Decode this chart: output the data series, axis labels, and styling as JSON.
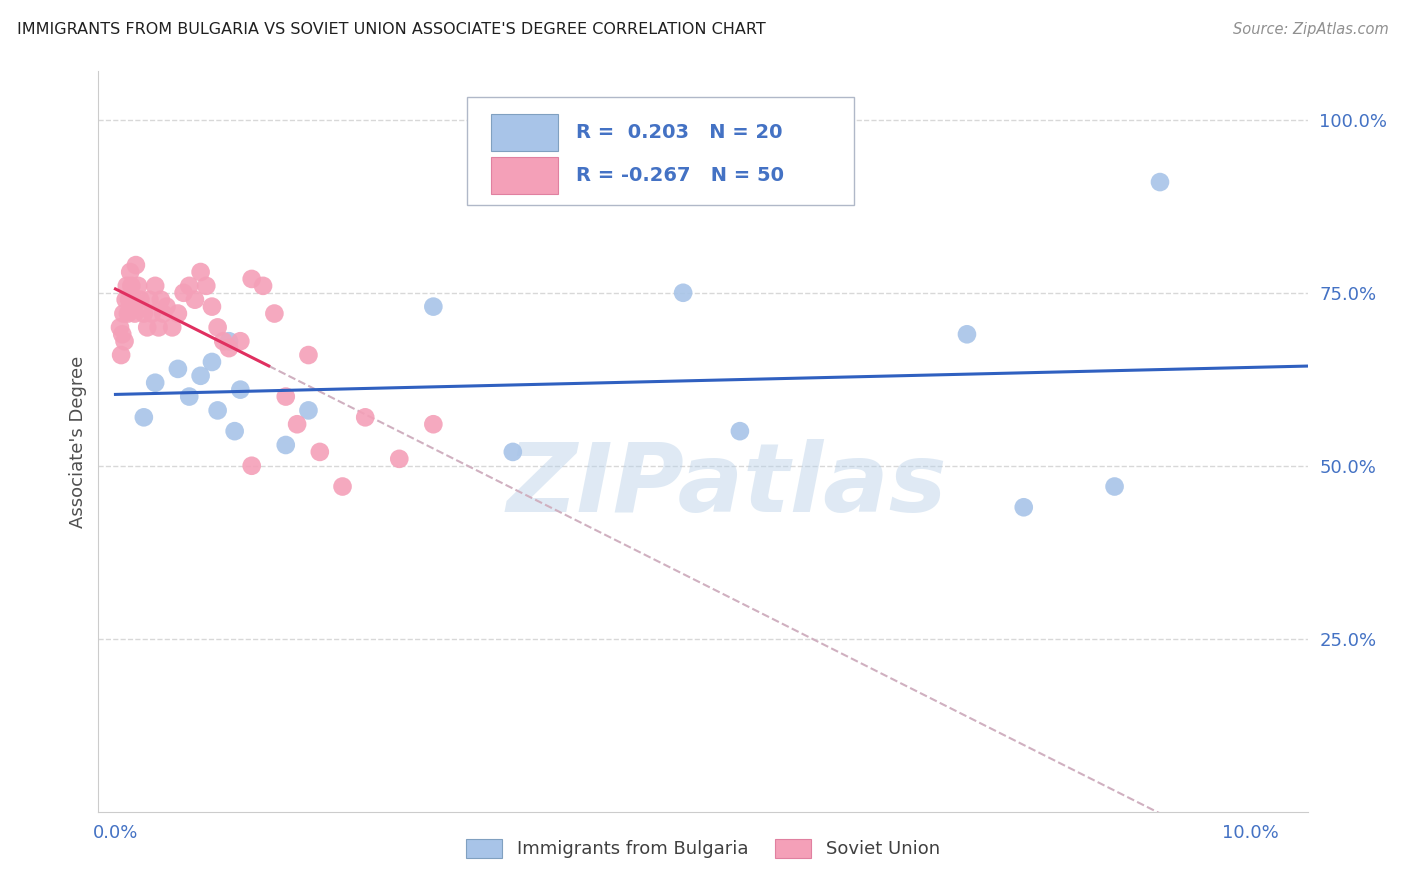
{
  "title": "IMMIGRANTS FROM BULGARIA VS SOVIET UNION ASSOCIATE'S DEGREE CORRELATION CHART",
  "source": "Source: ZipAtlas.com",
  "ylabel": "Associate's Degree",
  "watermark": "ZIPatlas",
  "bg_color": "#ffffff",
  "bulgaria_color": "#a8c4e8",
  "soviet_color": "#f4a0b8",
  "bulgaria_line_color": "#3060c0",
  "soviet_line_color": "#e03060",
  "soviet_line_dashed_color": "#d0b0c0",
  "axis_label_color": "#4472c4",
  "title_color": "#202020",
  "grid_color": "#d8d8d8",
  "ylim_bottom": 0.0,
  "ylim_top": 107.0,
  "xlim_left": -0.15,
  "xlim_right": 10.5,
  "bulgaria_x": [
    0.25,
    0.35,
    0.55,
    0.65,
    0.75,
    0.85,
    0.9,
    1.0,
    1.05,
    1.1,
    1.5,
    1.7,
    2.8,
    3.5,
    5.0,
    5.5,
    7.5,
    8.0,
    8.8,
    9.2
  ],
  "bulgaria_y": [
    57,
    62,
    64,
    60,
    63,
    65,
    58,
    68,
    55,
    61,
    53,
    58,
    73,
    52,
    75,
    55,
    69,
    44,
    47,
    91
  ],
  "soviet_x": [
    0.04,
    0.05,
    0.06,
    0.07,
    0.08,
    0.09,
    0.1,
    0.11,
    0.12,
    0.13,
    0.14,
    0.15,
    0.16,
    0.17,
    0.18,
    0.2,
    0.22,
    0.25,
    0.28,
    0.3,
    0.32,
    0.35,
    0.38,
    0.4,
    0.42,
    0.45,
    0.5,
    0.55,
    0.6,
    0.65,
    0.7,
    0.75,
    0.8,
    0.85,
    0.9,
    0.95,
    1.0,
    1.1,
    1.2,
    1.3,
    1.4,
    1.5,
    1.6,
    1.8,
    2.0,
    2.2,
    2.5,
    2.8,
    1.7,
    1.2
  ],
  "soviet_y": [
    70,
    66,
    69,
    72,
    68,
    74,
    76,
    72,
    74,
    78,
    76,
    73,
    74,
    72,
    79,
    76,
    74,
    72,
    70,
    74,
    72,
    76,
    70,
    74,
    72,
    73,
    70,
    72,
    75,
    76,
    74,
    78,
    76,
    73,
    70,
    68,
    67,
    68,
    77,
    76,
    72,
    60,
    56,
    52,
    47,
    57,
    51,
    56,
    66,
    50
  ],
  "yticks": [
    25,
    50,
    75,
    100
  ],
  "ytick_labels": [
    "25.0%",
    "50.0%",
    "75.0%",
    "100.0%"
  ],
  "xtick_left_label": "0.0%",
  "xtick_right_label": "10.0%"
}
